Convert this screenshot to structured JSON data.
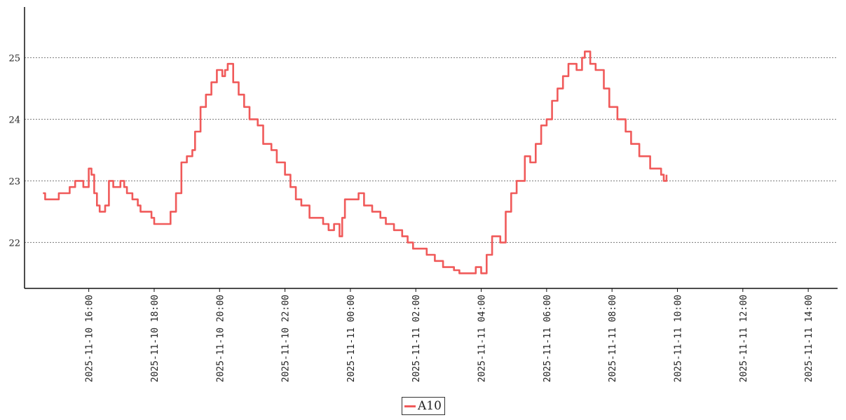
{
  "chart_data": {
    "type": "line",
    "title": "",
    "xlabel": "",
    "ylabel": "",
    "ylim": [
      21.3,
      25.8
    ],
    "xlim": [
      "2025-11-10 14:06",
      "2025-11-11 14:50"
    ],
    "grid": "horizontal dotted",
    "legend_position": "bottom-center",
    "x_ticks": [
      "2025-11-10 16:00",
      "2025-11-10 18:00",
      "2025-11-10 20:00",
      "2025-11-10 22:00",
      "2025-11-11 00:00",
      "2025-11-11 02:00",
      "2025-11-11 04:00",
      "2025-11-11 06:00",
      "2025-11-11 08:00",
      "2025-11-11 10:00",
      "2025-11-11 12:00",
      "2025-11-11 14:00"
    ],
    "y_ticks": [
      22,
      23,
      24,
      25
    ],
    "series": [
      {
        "name": "A10",
        "color": "#f05a5a",
        "points": [
          [
            "2025-11-10 14:36",
            22.8
          ],
          [
            "2025-11-10 14:40",
            22.7
          ],
          [
            "2025-11-10 15:05",
            22.8
          ],
          [
            "2025-11-10 15:25",
            22.9
          ],
          [
            "2025-11-10 15:35",
            23.0
          ],
          [
            "2025-11-10 15:50",
            22.9
          ],
          [
            "2025-11-10 16:00",
            23.2
          ],
          [
            "2025-11-10 16:05",
            23.1
          ],
          [
            "2025-11-10 16:10",
            22.8
          ],
          [
            "2025-11-10 16:15",
            22.6
          ],
          [
            "2025-11-10 16:20",
            22.5
          ],
          [
            "2025-11-10 16:30",
            22.6
          ],
          [
            "2025-11-10 16:37",
            23.0
          ],
          [
            "2025-11-10 16:45",
            22.9
          ],
          [
            "2025-11-10 16:58",
            23.0
          ],
          [
            "2025-11-10 17:05",
            22.9
          ],
          [
            "2025-11-10 17:10",
            22.8
          ],
          [
            "2025-11-10 17:20",
            22.7
          ],
          [
            "2025-11-10 17:30",
            22.6
          ],
          [
            "2025-11-10 17:35",
            22.5
          ],
          [
            "2025-11-10 17:55",
            22.4
          ],
          [
            "2025-11-10 18:00",
            22.3
          ],
          [
            "2025-11-10 18:30",
            22.5
          ],
          [
            "2025-11-10 18:40",
            22.8
          ],
          [
            "2025-11-10 18:50",
            23.3
          ],
          [
            "2025-11-10 19:00",
            23.4
          ],
          [
            "2025-11-10 19:10",
            23.5
          ],
          [
            "2025-11-10 19:15",
            23.8
          ],
          [
            "2025-11-10 19:25",
            24.2
          ],
          [
            "2025-11-10 19:35",
            24.4
          ],
          [
            "2025-11-10 19:45",
            24.6
          ],
          [
            "2025-11-10 19:55",
            24.8
          ],
          [
            "2025-11-10 20:05",
            24.7
          ],
          [
            "2025-11-10 20:10",
            24.8
          ],
          [
            "2025-11-10 20:15",
            24.9
          ],
          [
            "2025-11-10 20:25",
            24.6
          ],
          [
            "2025-11-10 20:35",
            24.4
          ],
          [
            "2025-11-10 20:45",
            24.2
          ],
          [
            "2025-11-10 20:55",
            24.0
          ],
          [
            "2025-11-10 21:10",
            23.9
          ],
          [
            "2025-11-10 21:20",
            23.6
          ],
          [
            "2025-11-10 21:35",
            23.5
          ],
          [
            "2025-11-10 21:45",
            23.3
          ],
          [
            "2025-11-10 22:00",
            23.1
          ],
          [
            "2025-11-10 22:10",
            22.9
          ],
          [
            "2025-11-10 22:20",
            22.7
          ],
          [
            "2025-11-10 22:30",
            22.6
          ],
          [
            "2025-11-10 22:45",
            22.4
          ],
          [
            "2025-11-10 23:10",
            22.3
          ],
          [
            "2025-11-10 23:20",
            22.2
          ],
          [
            "2025-11-10 23:30",
            22.3
          ],
          [
            "2025-11-10 23:40",
            22.1
          ],
          [
            "2025-11-10 23:45",
            22.4
          ],
          [
            "2025-11-10 23:50",
            22.7
          ],
          [
            "2025-11-11 00:10",
            22.7
          ],
          [
            "2025-11-11 00:15",
            22.8
          ],
          [
            "2025-11-11 00:25",
            22.6
          ],
          [
            "2025-11-11 00:40",
            22.5
          ],
          [
            "2025-11-11 00:55",
            22.4
          ],
          [
            "2025-11-11 01:05",
            22.3
          ],
          [
            "2025-11-11 01:20",
            22.2
          ],
          [
            "2025-11-11 01:35",
            22.1
          ],
          [
            "2025-11-11 01:45",
            22.0
          ],
          [
            "2025-11-11 01:55",
            21.9
          ],
          [
            "2025-11-11 02:20",
            21.8
          ],
          [
            "2025-11-11 02:35",
            21.7
          ],
          [
            "2025-11-11 02:50",
            21.6
          ],
          [
            "2025-11-11 03:10",
            21.55
          ],
          [
            "2025-11-11 03:20",
            21.5
          ],
          [
            "2025-11-11 03:50",
            21.6
          ],
          [
            "2025-11-11 04:00",
            21.5
          ],
          [
            "2025-11-11 04:10",
            21.8
          ],
          [
            "2025-11-11 04:20",
            22.1
          ],
          [
            "2025-11-11 04:35",
            22.0
          ],
          [
            "2025-11-11 04:45",
            22.5
          ],
          [
            "2025-11-11 04:55",
            22.8
          ],
          [
            "2025-11-11 05:05",
            23.0
          ],
          [
            "2025-11-11 05:20",
            23.4
          ],
          [
            "2025-11-11 05:30",
            23.3
          ],
          [
            "2025-11-11 05:40",
            23.6
          ],
          [
            "2025-11-11 05:50",
            23.9
          ],
          [
            "2025-11-11 06:00",
            24.0
          ],
          [
            "2025-11-11 06:10",
            24.3
          ],
          [
            "2025-11-11 06:20",
            24.5
          ],
          [
            "2025-11-11 06:30",
            24.7
          ],
          [
            "2025-11-11 06:40",
            24.9
          ],
          [
            "2025-11-11 06:55",
            24.8
          ],
          [
            "2025-11-11 07:05",
            25.0
          ],
          [
            "2025-11-11 07:10",
            25.1
          ],
          [
            "2025-11-11 07:20",
            24.9
          ],
          [
            "2025-11-11 07:30",
            24.8
          ],
          [
            "2025-11-11 07:45",
            24.5
          ],
          [
            "2025-11-11 07:55",
            24.2
          ],
          [
            "2025-11-11 08:10",
            24.0
          ],
          [
            "2025-11-11 08:25",
            23.8
          ],
          [
            "2025-11-11 08:35",
            23.6
          ],
          [
            "2025-11-11 08:50",
            23.4
          ],
          [
            "2025-11-11 09:10",
            23.2
          ],
          [
            "2025-11-11 09:30",
            23.1
          ],
          [
            "2025-11-11 09:35",
            23.0
          ],
          [
            "2025-11-11 09:40",
            23.1
          ]
        ]
      }
    ]
  }
}
